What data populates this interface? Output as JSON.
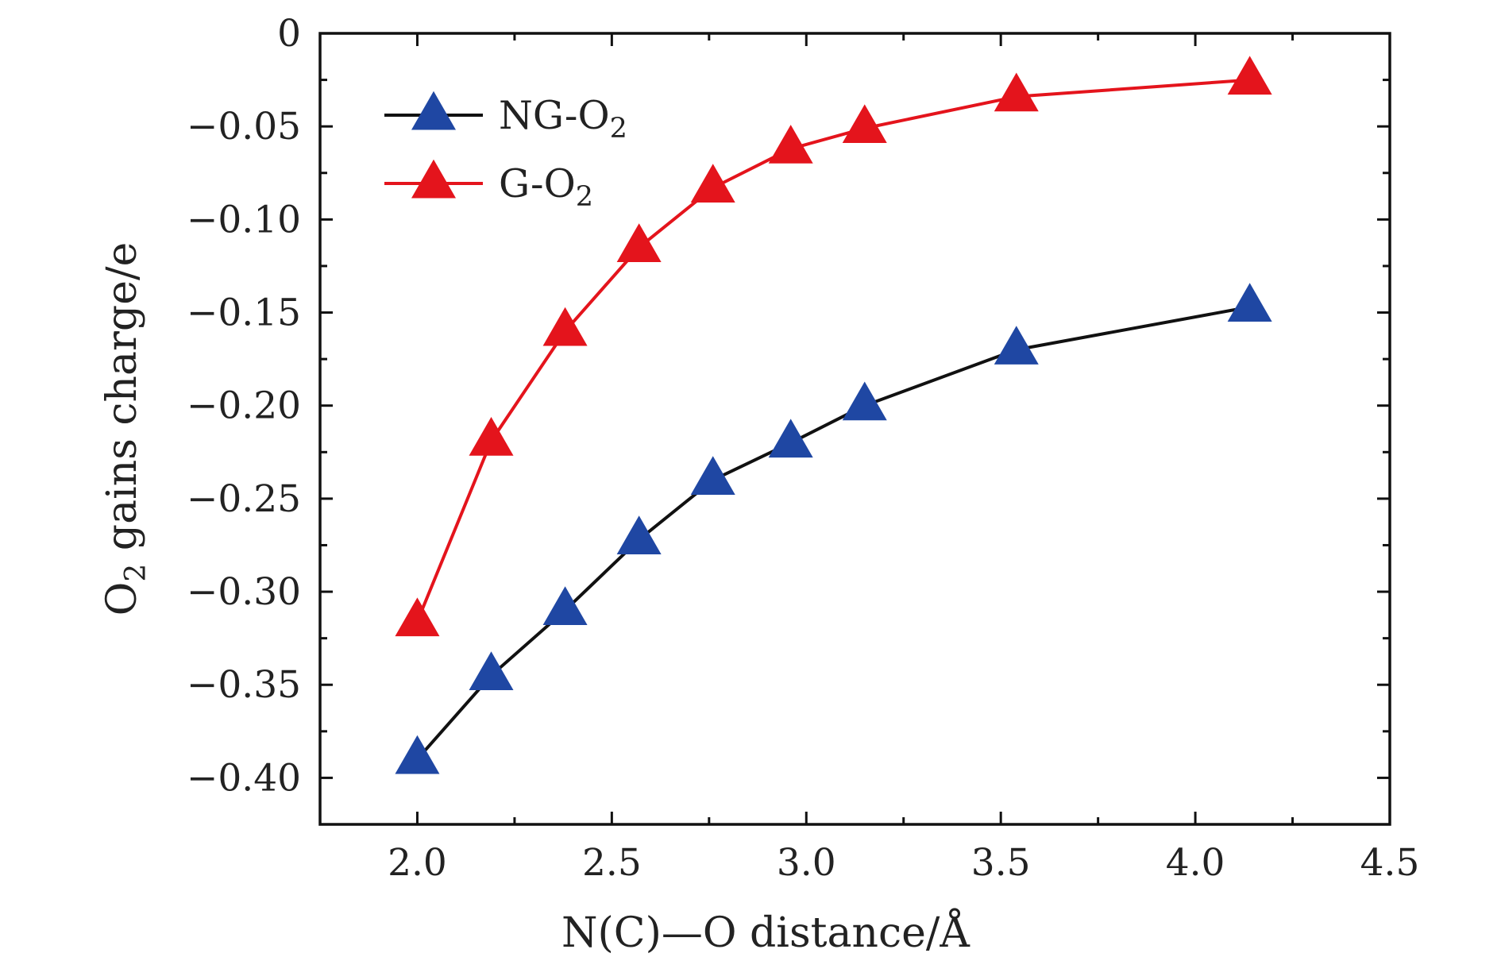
{
  "chart_data": {
    "type": "line",
    "title": "",
    "xlabel": "N(C)—O distance/Å",
    "ylabel_main": "O",
    "ylabel_sub": "2",
    "ylabel_rest": " gains charge/e",
    "xlim": [
      1.75,
      4.5
    ],
    "ylim": [
      -0.425,
      0
    ],
    "x_ticks": [
      2.0,
      2.5,
      3.0,
      3.5,
      4.0,
      4.5
    ],
    "x_tick_labels": [
      "2.0",
      "2.5",
      "3.0",
      "3.5",
      "4.0",
      "4.5"
    ],
    "y_ticks": [
      0,
      -0.05,
      -0.1,
      -0.15,
      -0.2,
      -0.25,
      -0.3,
      -0.35,
      -0.4
    ],
    "y_tick_labels": [
      "0",
      "−0.05",
      "−0.10",
      "−0.15",
      "−0.20",
      "−0.25",
      "−0.30",
      "−0.35",
      "−0.40"
    ],
    "legend_position": "top-left",
    "series": [
      {
        "name": "NG-O",
        "name_sub": "2",
        "line_color": "#111111",
        "marker_color": "#1f47a3",
        "marker": "triangle",
        "x": [
          2.0,
          2.19,
          2.38,
          2.57,
          2.76,
          2.96,
          3.15,
          3.54,
          4.14
        ],
        "y": [
          -0.39,
          -0.345,
          -0.31,
          -0.272,
          -0.24,
          -0.22,
          -0.2,
          -0.17,
          -0.147
        ]
      },
      {
        "name": "G-O",
        "name_sub": "2",
        "line_color": "#e4141c",
        "marker_color": "#e4141c",
        "marker": "triangle",
        "x": [
          2.0,
          2.19,
          2.38,
          2.57,
          2.76,
          2.96,
          3.15,
          3.54,
          4.14
        ],
        "y": [
          -0.316,
          -0.219,
          -0.16,
          -0.115,
          -0.083,
          -0.062,
          -0.051,
          -0.034,
          -0.025
        ]
      }
    ]
  }
}
